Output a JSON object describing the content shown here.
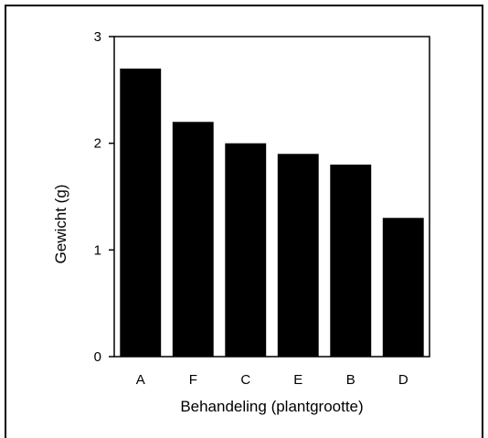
{
  "chart_data": {
    "type": "bar",
    "categories": [
      "A",
      "F",
      "C",
      "E",
      "B",
      "D"
    ],
    "values": [
      2.7,
      2.2,
      2.0,
      1.9,
      1.8,
      1.3
    ],
    "title": "",
    "xlabel": "Behandeling (plantgrootte)",
    "ylabel": "Gewicht (g)",
    "ylim": [
      0,
      3
    ],
    "yticks": [
      0,
      1,
      2,
      3
    ],
    "bar_color": "#000000",
    "grid": false,
    "legend": "none"
  }
}
